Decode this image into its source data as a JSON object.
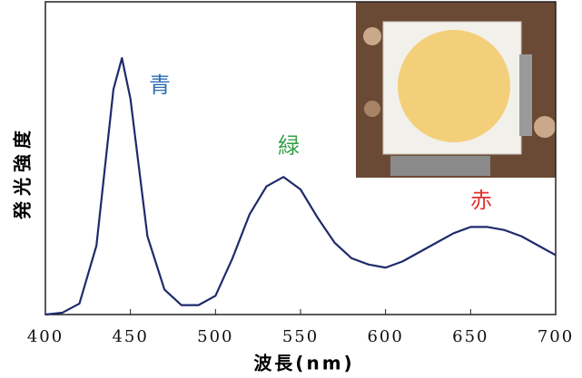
{
  "chart_data": {
    "type": "line",
    "x_label": "波長(nm)",
    "y_label": "発光強度",
    "x": [
      400,
      410,
      420,
      430,
      440,
      445,
      450,
      460,
      470,
      480,
      490,
      500,
      510,
      520,
      530,
      540,
      550,
      560,
      570,
      580,
      590,
      600,
      610,
      620,
      630,
      640,
      650,
      660,
      670,
      680,
      690,
      700
    ],
    "series": [
      {
        "color": "#1f2a6b",
        "values": [
          0,
          0.006,
          0.035,
          0.22,
          0.72,
          0.82,
          0.69,
          0.25,
          0.08,
          0.03,
          0.03,
          0.06,
          0.18,
          0.32,
          0.41,
          0.44,
          0.4,
          0.31,
          0.23,
          0.18,
          0.16,
          0.15,
          0.17,
          0.2,
          0.23,
          0.26,
          0.28,
          0.28,
          0.27,
          0.25,
          0.22,
          0.19
        ]
      }
    ],
    "xlim": [
      400,
      700
    ],
    "ylim": [
      0,
      1
    ],
    "xticks": [
      400,
      450,
      500,
      550,
      600,
      650,
      700
    ],
    "annotations": [
      {
        "text": "青",
        "color": "#2b6cb3"
      },
      {
        "text": "緑",
        "color": "#3aa14a"
      },
      {
        "text": "赤",
        "color": "#e0332e"
      }
    ]
  }
}
